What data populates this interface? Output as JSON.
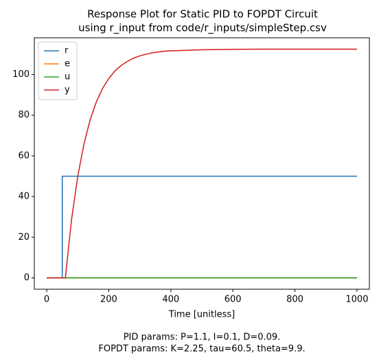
{
  "chart_data": {
    "type": "line",
    "title": [
      "Response Plot for Static PID to FOPDT Circuit",
      "using r_input from code/r_inputs/simpleStep.csv"
    ],
    "xlabel": "Time [unitless]",
    "annotations": [
      "PID params: P=1.1, I=0.1, D=0.09.",
      "FOPDT params: K=2.25, tau=60.5, theta=9.9."
    ],
    "x": [
      0,
      50,
      50,
      60,
      80,
      100,
      120,
      140,
      160,
      180,
      200,
      220,
      240,
      260,
      280,
      300,
      320,
      340,
      360,
      380,
      400,
      500,
      600,
      700,
      800,
      900,
      1000
    ],
    "series": [
      {
        "name": "r",
        "color": "#1f77b4",
        "values": [
          0,
          0,
          50,
          50,
          50,
          50,
          50,
          50,
          50,
          50,
          50,
          50,
          50,
          50,
          50,
          50,
          50,
          50,
          50,
          50,
          50,
          50,
          50,
          50,
          50,
          50,
          50
        ]
      },
      {
        "name": "e",
        "color": "#ff7f0e",
        "values": [
          0,
          0,
          0,
          0,
          0,
          0,
          0,
          0,
          0,
          0,
          0,
          0,
          0,
          0,
          0,
          0,
          0,
          0,
          0,
          0,
          0,
          0,
          0,
          0,
          0,
          0,
          0
        ]
      },
      {
        "name": "u",
        "color": "#2ca02c",
        "values": [
          0,
          0,
          0,
          0,
          0,
          0,
          0,
          0,
          0,
          0,
          0,
          0,
          0,
          0,
          0,
          0,
          0,
          0,
          0,
          0,
          0,
          0,
          0,
          0,
          0,
          0,
          0
        ]
      },
      {
        "name": "y",
        "color": "#d62728",
        "values": [
          0,
          0,
          0,
          0,
          28.7,
          50.0,
          65.9,
          77.8,
          86.6,
          93.2,
          98.1,
          101.8,
          104.5,
          106.5,
          108.1,
          109.2,
          110.0,
          110.7,
          111.1,
          111.5,
          111.7,
          112.2,
          112.4,
          112.5,
          112.5,
          112.5,
          112.5
        ]
      }
    ],
    "xlim": [
      -40,
      1040
    ],
    "ylim": [
      -5.6,
      118.1
    ],
    "xticks": [
      0,
      200,
      400,
      600,
      800,
      1000
    ],
    "yticks": [
      0,
      20,
      40,
      60,
      80,
      100
    ],
    "legend": "upper left"
  }
}
